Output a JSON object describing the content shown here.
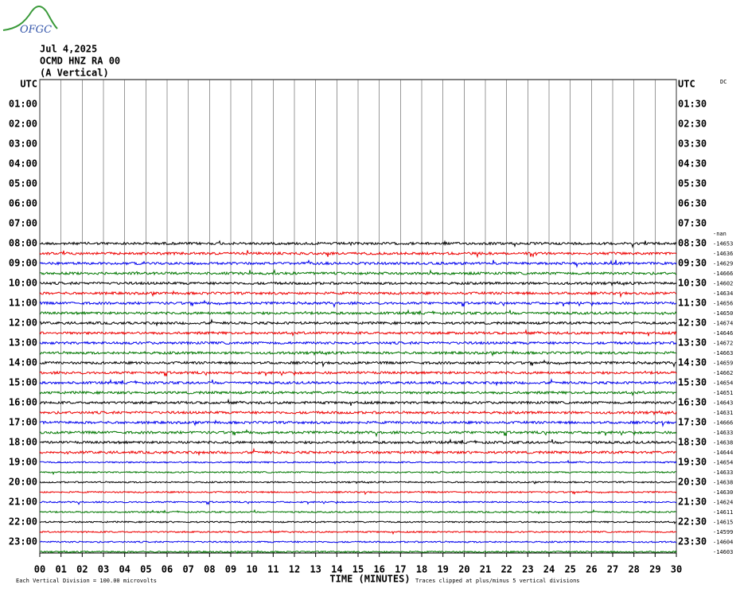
{
  "logo": "OFGC",
  "header": {
    "date": "Jul 4,2025",
    "station": "OCMD HNZ RA 00",
    "component": "(A Vertical)"
  },
  "dc_heading": "DC",
  "left_labels": [
    "UTC",
    "01:00",
    "02:00",
    "03:00",
    "04:00",
    "05:00",
    "06:00",
    "07:00",
    "08:00",
    "09:00",
    "10:00",
    "11:00",
    "12:00",
    "13:00",
    "14:00",
    "15:00",
    "16:00",
    "17:00",
    "18:00",
    "19:00",
    "20:00",
    "21:00",
    "22:00",
    "23:00"
  ],
  "right_labels": [
    "UTC",
    "01:30",
    "02:30",
    "03:30",
    "04:30",
    "05:30",
    "06:30",
    "07:30",
    "08:30",
    "09:30",
    "10:30",
    "11:30",
    "12:30",
    "13:30",
    "14:30",
    "15:30",
    "16:30",
    "17:30",
    "18:30",
    "19:30",
    "20:30",
    "21:30",
    "22:30",
    "23:30"
  ],
  "dc_values": [
    "-nan",
    "-14653",
    "-14636",
    "-14629",
    "-14666",
    "-14602",
    "-14634",
    "-14656",
    "-14650",
    "-14674",
    "-14646",
    "-14672",
    "-14663",
    "-14659",
    "-14662",
    "-14654",
    "-14651",
    "-14643",
    "-14631",
    "-14666",
    "-14633",
    "-14638",
    "-14644",
    "-14654",
    "-14633",
    "-14638",
    "-14630",
    "-14624",
    "-14611",
    "-14615",
    "-14599",
    "-14604",
    "-14603"
  ],
  "x_tick_labels": [
    "00",
    "01",
    "02",
    "03",
    "04",
    "05",
    "06",
    "07",
    "08",
    "09",
    "10",
    "11",
    "12",
    "13",
    "14",
    "15",
    "16",
    "17",
    "18",
    "19",
    "20",
    "21",
    "22",
    "23",
    "24",
    "25",
    "26",
    "27",
    "28",
    "29",
    "30"
  ],
  "x_axis_title": "TIME (MINUTES)",
  "footer": {
    "scale": "Each Vertical Division =  100.00 microvolts",
    "clip": "Traces clipped at plus/minus 5 vertical divisions"
  }
}
